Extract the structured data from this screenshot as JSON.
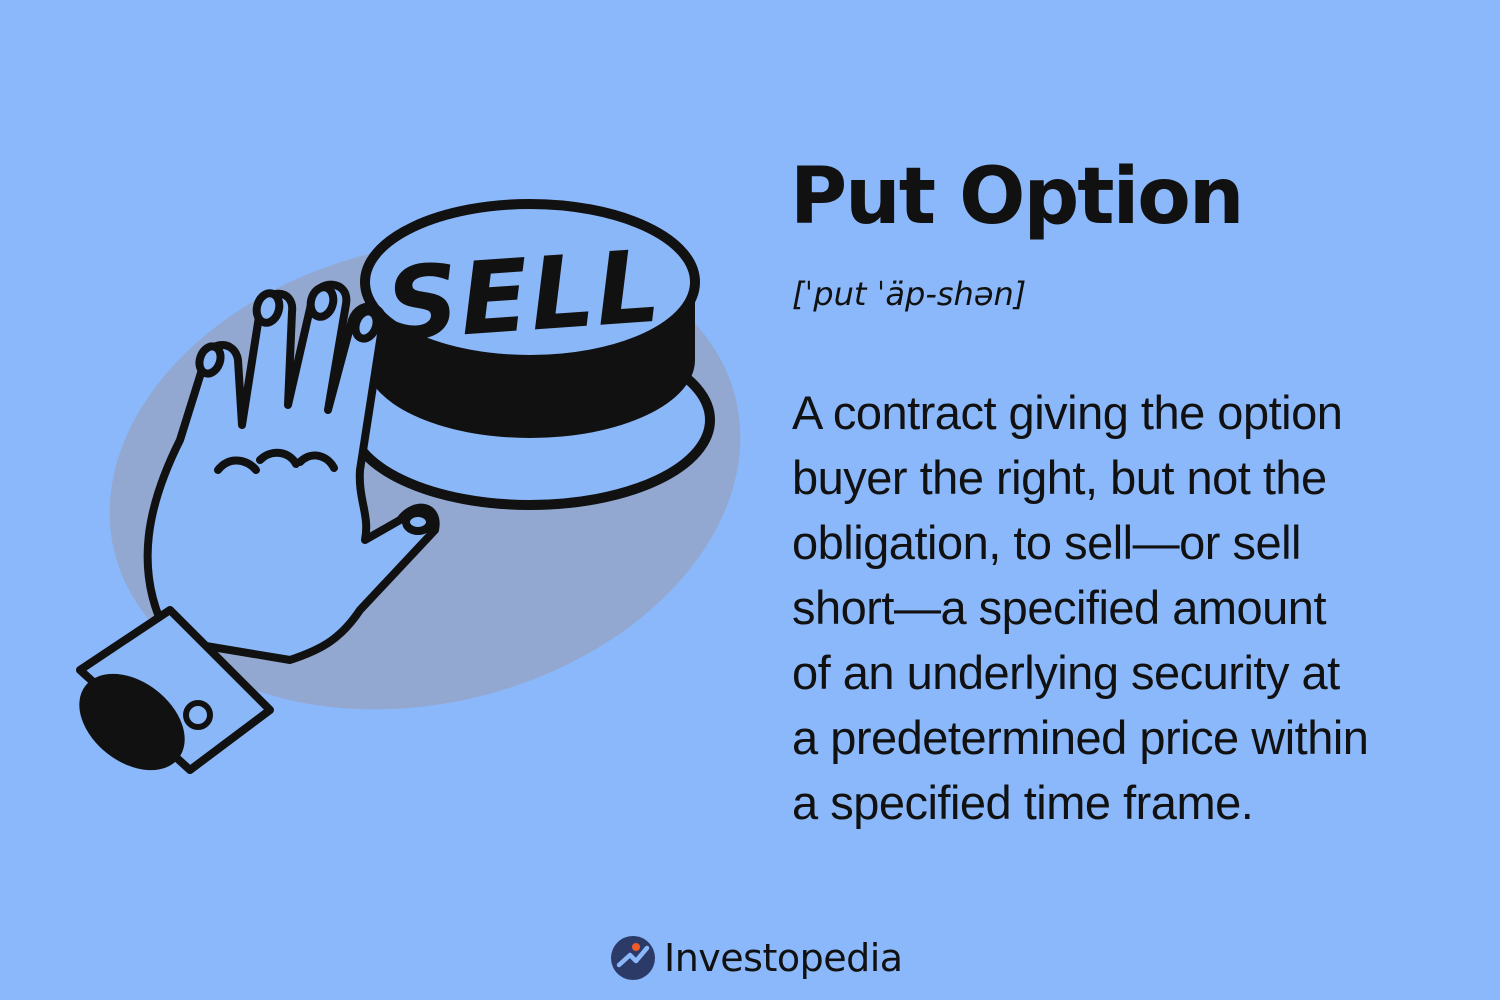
{
  "colors": {
    "background": "#8bb8fb",
    "ink": "#111111",
    "shadow_blob": "#95a6c9",
    "button_top": "#8ab7f8",
    "logo_accent": "#f05a28",
    "logo_navy": "#2b3a67"
  },
  "illustration": {
    "button_label": "SELL",
    "subject": "hand-pressing-sell-button-icon"
  },
  "heading": {
    "title": "Put Option",
    "pronunciation": "[ˈput ˈäp-shən]"
  },
  "definition": {
    "lines": [
      "A contract giving the option",
      "buyer the right, but not the",
      "obligation, to sell—or sell",
      "short—a specified amount",
      "of an underlying security at",
      "a predetermined price within",
      "a specified time frame."
    ]
  },
  "brand": {
    "name": "Investopedia",
    "logo_icon": "investopedia-logo-icon"
  }
}
